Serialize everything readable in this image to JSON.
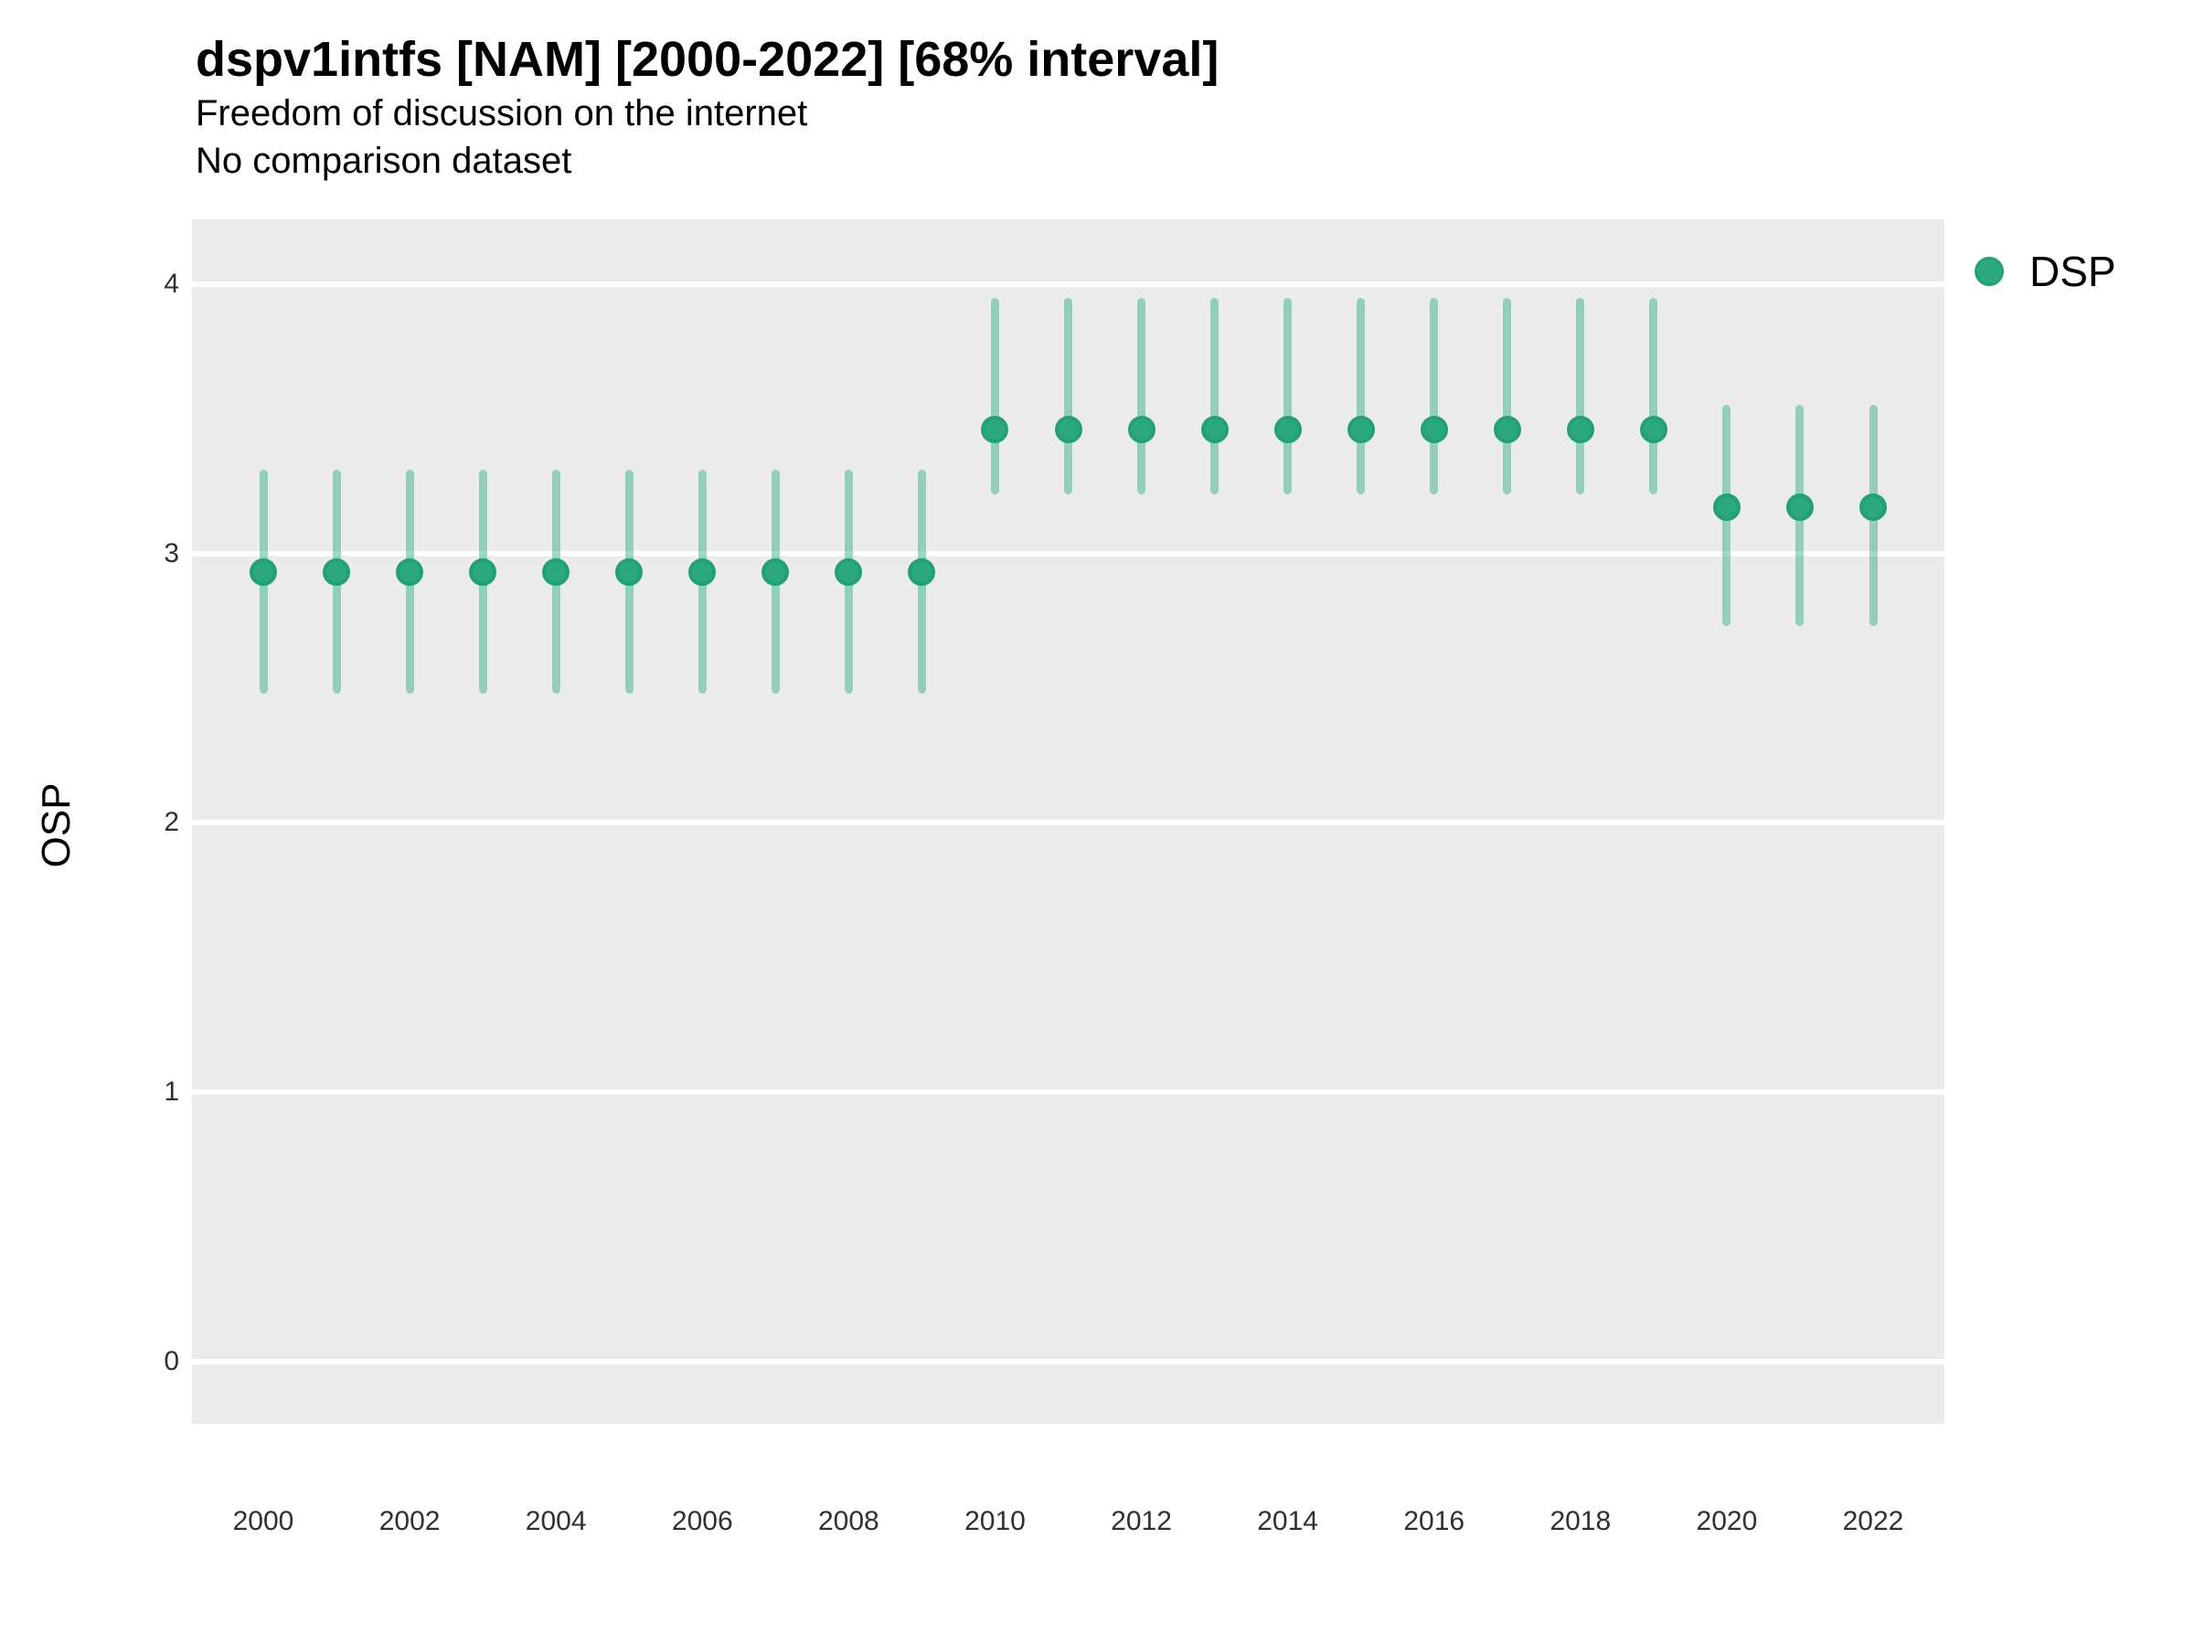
{
  "header": {
    "title": "dspv1intfs [NAM] [2000-2022] [68% interval]",
    "subtitle": "Freedom of discussion on the internet",
    "comparison_note": "No comparison dataset"
  },
  "legend": {
    "position": "right-top",
    "items": [
      {
        "label": "DSP",
        "marker": "circle-icon",
        "color": "#2BA87D"
      }
    ]
  },
  "colors": {
    "panel_background": "#EBEBEB",
    "gridline": "#FFFFFF",
    "point_fill": "#2BA87D",
    "point_stroke": "#23A173",
    "interval_line": "rgba(43,168,125,0.45)",
    "title_text": "#000000",
    "tick_text": "#303030"
  },
  "chart_data": {
    "type": "scatter",
    "subtype": "pointrange",
    "title": "dspv1intfs [NAM] [2000-2022] [68% interval]",
    "subtitle": "Freedom of discussion on the internet",
    "note": "No comparison dataset",
    "xlabel": "",
    "ylabel": "OSP",
    "interval_level": "68%",
    "x": [
      2000,
      2001,
      2002,
      2003,
      2004,
      2005,
      2006,
      2007,
      2008,
      2009,
      2010,
      2011,
      2012,
      2013,
      2014,
      2015,
      2016,
      2017,
      2018,
      2019,
      2020,
      2021,
      2022
    ],
    "xticks": [
      2000,
      2002,
      2004,
      2006,
      2008,
      2010,
      2012,
      2014,
      2016,
      2018,
      2020,
      2022
    ],
    "yticks": [
      0,
      1,
      2,
      3,
      4
    ],
    "ylim": [
      -0.23,
      4.24
    ],
    "grid": "white major gridlines on gray panel, no minor gridlines",
    "legend_position": "right",
    "series": [
      {
        "name": "DSP",
        "y": [
          2.93,
          2.93,
          2.93,
          2.93,
          2.93,
          2.93,
          2.93,
          2.93,
          2.93,
          2.93,
          3.46,
          3.46,
          3.46,
          3.46,
          3.46,
          3.46,
          3.46,
          3.46,
          3.46,
          3.46,
          3.17,
          3.17,
          3.17
        ],
        "y_low": [
          2.48,
          2.48,
          2.48,
          2.48,
          2.48,
          2.48,
          2.48,
          2.48,
          2.48,
          2.48,
          3.22,
          3.22,
          3.22,
          3.22,
          3.22,
          3.22,
          3.22,
          3.22,
          3.22,
          3.22,
          2.73,
          2.73,
          2.73
        ],
        "y_high": [
          3.31,
          3.31,
          3.31,
          3.31,
          3.31,
          3.31,
          3.31,
          3.31,
          3.31,
          3.31,
          3.95,
          3.95,
          3.95,
          3.95,
          3.95,
          3.95,
          3.95,
          3.95,
          3.95,
          3.95,
          3.55,
          3.55,
          3.55
        ]
      }
    ]
  }
}
